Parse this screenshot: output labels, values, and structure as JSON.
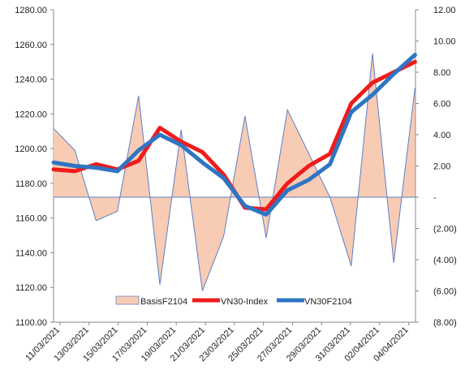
{
  "chart_data": {
    "type": "line",
    "title": "",
    "xlabel": "",
    "ylabel": "",
    "y_left_lim": [
      1100,
      1280
    ],
    "y_left_ticks": [
      1100,
      1120,
      1140,
      1160,
      1180,
      1200,
      1220,
      1240,
      1260,
      1280
    ],
    "y_left_tick_labels": [
      "1100.00",
      "1120.00",
      "1140.00",
      "1160.00",
      "1180.00",
      "1200.00",
      "1220.00",
      "1240.00",
      "1260.00",
      "1280.00"
    ],
    "y_right_lim": [
      -8,
      12
    ],
    "y_right_ticks": [
      -8,
      -6,
      -4,
      -2,
      0,
      2,
      4,
      6,
      8,
      10,
      12
    ],
    "y_right_tick_labels": [
      "(8.00)",
      "(6.00)",
      "(4.00)",
      "(2.00)",
      "-",
      "2.00",
      "4.00",
      "6.00",
      "8.00",
      "10.00",
      "12.00"
    ],
    "x_tick_labels": [
      "11/03/2021",
      "13/03/2021",
      "15/03/2021",
      "17/03/2021",
      "19/03/2021",
      "21/03/2021",
      "23/03/2021",
      "25/03/2021",
      "27/03/2021",
      "29/03/2021",
      "31/03/2021",
      "02/04/2021",
      "04/04/2021"
    ],
    "legend_position": "bottom-center",
    "x": [
      "11/03/2021",
      "12/03/2021",
      "15/03/2021",
      "16/03/2021",
      "17/03/2021",
      "18/03/2021",
      "19/03/2021",
      "22/03/2021",
      "23/03/2021",
      "24/03/2021",
      "25/03/2021",
      "26/03/2021",
      "29/03/2021",
      "30/03/2021",
      "31/03/2021",
      "01/04/2021",
      "02/04/2021",
      "05/04/2021"
    ],
    "series": [
      {
        "name": "BasisF2104",
        "type": "area",
        "axis": "right",
        "color": "#f8cbb4",
        "line_color": "#5b7fc4",
        "values": [
          4.4,
          3.0,
          -1.5,
          -0.9,
          6.5,
          -5.6,
          4.3,
          -6.0,
          -2.5,
          5.2,
          -2.6,
          5.6,
          2.8,
          0.0,
          -4.4,
          9.2,
          -4.2,
          7.0
        ]
      },
      {
        "name": "VN30-Index",
        "type": "line",
        "axis": "left",
        "color": "#ee1c1c",
        "values": [
          1188,
          1187,
          1191,
          1188,
          1193,
          1212,
          1204,
          1198,
          1185,
          1166,
          1165,
          1180,
          1190,
          1197,
          1226,
          1238,
          1244,
          1250
        ]
      },
      {
        "name": "VN30F2104",
        "type": "line",
        "axis": "left",
        "color": "#2e75c3",
        "values": [
          1192,
          1190,
          1189,
          1187,
          1199,
          1208,
          1202,
          1192,
          1183,
          1167,
          1162,
          1176,
          1182,
          1191,
          1221,
          1231,
          1243,
          1254
        ]
      }
    ]
  }
}
